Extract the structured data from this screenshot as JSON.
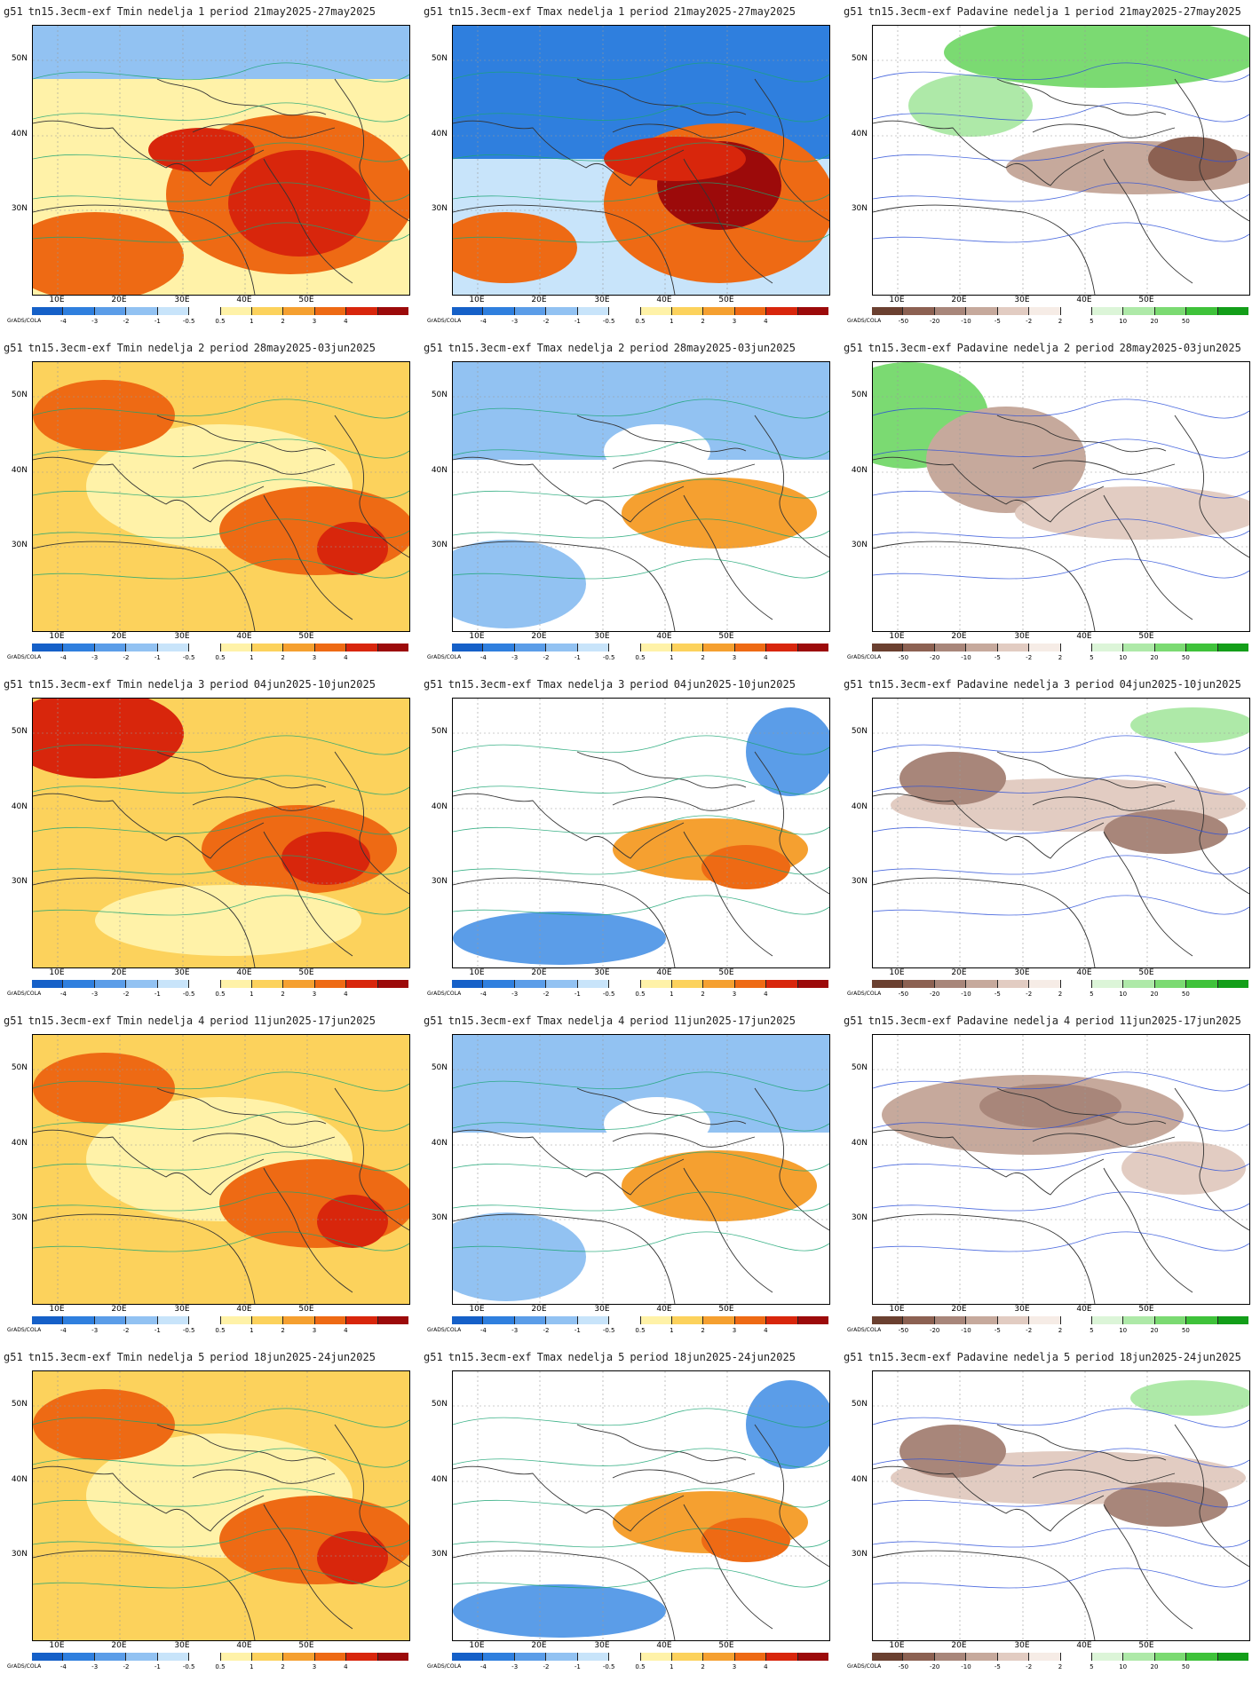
{
  "rows": [
    {
      "week": "1",
      "period": "21may2025-27may2025",
      "scenes": {
        "tmin": "hot_east",
        "tmax": "cold_north",
        "prec": "wet_north"
      }
    },
    {
      "week": "2",
      "period": "28may2025-03jun2025",
      "scenes": {
        "tmin": "warm_general",
        "tmax": "cool_north",
        "prec": "wet_west"
      }
    },
    {
      "week": "3",
      "period": "04jun2025-10jun2025",
      "scenes": {
        "tmin": "warm_west",
        "tmax": "neutral_cool",
        "prec": "dry_belt"
      }
    },
    {
      "week": "4",
      "period": "11jun2025-17jun2025",
      "scenes": {
        "tmin": "warm_general",
        "tmax": "cool_north",
        "prec": "dry_north"
      }
    },
    {
      "week": "5",
      "period": "18jun2025-24jun2025",
      "scenes": {
        "tmin": "warm_general",
        "tmax": "neutral_cool",
        "prec": "dry_belt"
      }
    }
  ],
  "columns": [
    {
      "key": "tmin",
      "title": "Tmin",
      "legend": "temp"
    },
    {
      "key": "tmax",
      "title": "Tmax",
      "legend": "temp"
    },
    {
      "key": "prec",
      "title": "Padavine",
      "legend": "prec"
    }
  ],
  "common": {
    "model": "g51",
    "experiment": "tn15.3ecm-exf",
    "week_label": "nedelja",
    "period_label": "period",
    "credit": "GrADS/COLA"
  },
  "axes": {
    "lat_labels": [
      "50N",
      "40N",
      "30N"
    ],
    "lon_labels": [
      "10E",
      "20E",
      "30E",
      "40E",
      "50E"
    ]
  },
  "legends": {
    "temp": {
      "ticks": [
        "-4",
        "-3",
        "-2",
        "-1",
        "-0.5",
        "0.5",
        "1",
        "2",
        "3",
        "4"
      ],
      "colors": [
        "#1560c8",
        "#2f7fde",
        "#5b9de8",
        "#92c2f2",
        "#c8e4fa",
        "#ffffff",
        "#fff2a8",
        "#fcd25c",
        "#f5a030",
        "#ee6a14",
        "#d8260c",
        "#9c0a0a"
      ]
    },
    "prec": {
      "ticks": [
        "-50",
        "-20",
        "-10",
        "-5",
        "-2",
        "2",
        "5",
        "10",
        "20",
        "50"
      ],
      "colors": [
        "#6b4030",
        "#8c6152",
        "#a8867a",
        "#c6a99c",
        "#e2ccc2",
        "#f6ece6",
        "#ffffff",
        "#dcf5d8",
        "#aee9a8",
        "#7bda72",
        "#3fc23a",
        "#139e19"
      ]
    }
  }
}
